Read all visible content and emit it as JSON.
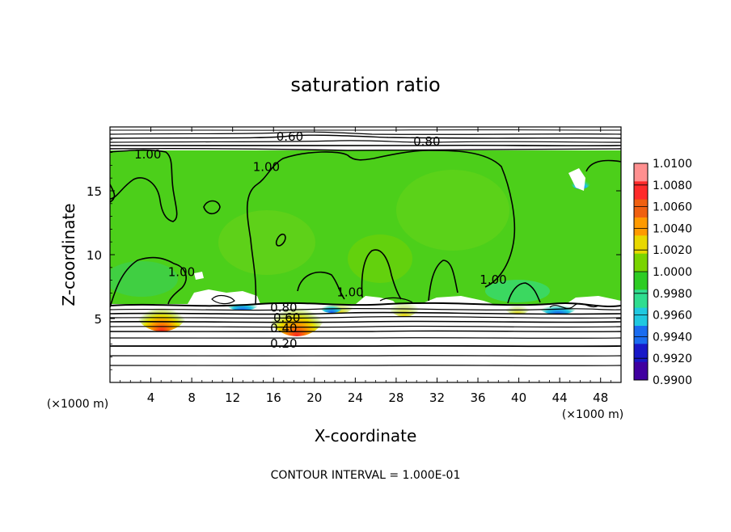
{
  "chart_data": {
    "type": "heatmap",
    "title": "saturation ratio",
    "xlabel": "X-coordinate",
    "ylabel": "Z-coordinate",
    "x_unit_label_left": "(×1000 m)",
    "x_unit_label_right": "(×1000 m)",
    "xlim": [
      0,
      50
    ],
    "ylim": [
      0,
      20
    ],
    "x_ticks": [
      4,
      8,
      12,
      16,
      20,
      24,
      28,
      32,
      36,
      40,
      44,
      48
    ],
    "y_ticks": [
      5,
      10,
      15
    ],
    "contour_interval_text": "CONTOUR INTERVAL = 1.000E-01",
    "colorbar": {
      "labels": [
        "1.0100",
        "1.0080",
        "1.0060",
        "1.0040",
        "1.0020",
        "1.0000",
        "0.9980",
        "0.9960",
        "0.9940",
        "0.9920",
        "0.9900"
      ],
      "colors": [
        "#ff9090",
        "#ff2a2a",
        "#f06010",
        "#ff9a00",
        "#e8d800",
        "#7ad400",
        "#2ecc24",
        "#30dd90",
        "#20c8e0",
        "#1a6cf0",
        "#1818c8",
        "#4000a0"
      ]
    },
    "contour_labels": [
      {
        "text": "0.60",
        "x": 17.6,
        "z": 19.0
      },
      {
        "text": "0.80",
        "x": 31.0,
        "z": 18.6
      },
      {
        "text": "1.00",
        "x": 3.7,
        "z": 17.6
      },
      {
        "text": "1.00",
        "x": 15.3,
        "z": 16.6
      },
      {
        "text": "1.00",
        "x": 7.0,
        "z": 8.4
      },
      {
        "text": "1.00",
        "x": 23.5,
        "z": 6.8
      },
      {
        "text": "1.00",
        "x": 37.5,
        "z": 7.8
      },
      {
        "text": "0.80",
        "x": 17.0,
        "z": 5.6
      },
      {
        "text": "0.60",
        "x": 17.3,
        "z": 4.8
      },
      {
        "text": "0.40",
        "x": 17.0,
        "z": 4.0
      },
      {
        "text": "0.20",
        "x": 17.0,
        "z": 2.8
      }
    ]
  }
}
